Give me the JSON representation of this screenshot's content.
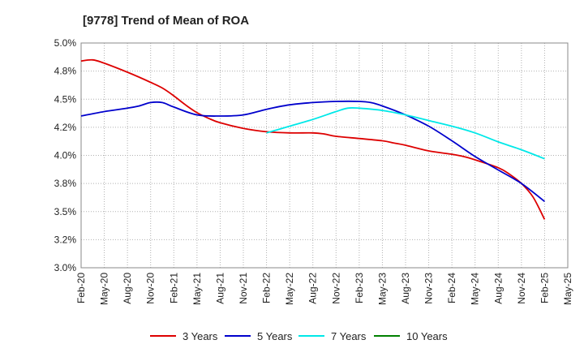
{
  "chart_data": {
    "type": "line",
    "title": "[9778]  Trend of Mean of ROA",
    "xlabel": "",
    "ylabel": "",
    "ylim": [
      3.0,
      5.0
    ],
    "yticks": [
      "3.0%",
      "3.2%",
      "3.5%",
      "3.8%",
      "4.0%",
      "4.2%",
      "4.5%",
      "4.8%",
      "5.0%"
    ],
    "ytick_values": [
      3.0,
      3.25,
      3.5,
      3.75,
      4.0,
      4.25,
      4.5,
      4.75,
      5.0
    ],
    "xticks": [
      "Feb-20",
      "May-20",
      "Aug-20",
      "Nov-20",
      "Feb-21",
      "May-21",
      "Aug-21",
      "Nov-21",
      "Feb-22",
      "May-22",
      "Aug-22",
      "Nov-22",
      "Feb-23",
      "May-23",
      "Aug-23",
      "Nov-23",
      "Feb-24",
      "May-24",
      "Aug-24",
      "Nov-24",
      "Feb-25",
      "May-25"
    ],
    "grid": true,
    "legend_position": "bottom",
    "series": [
      {
        "name": "3 Years",
        "color": "#dd0000",
        "points": [
          [
            0,
            4.84
          ],
          [
            0.5,
            4.85
          ],
          [
            1,
            4.82
          ],
          [
            2,
            4.74
          ],
          [
            3,
            4.65
          ],
          [
            3.5,
            4.6
          ],
          [
            4,
            4.53
          ],
          [
            4.5,
            4.45
          ],
          [
            5,
            4.38
          ],
          [
            5.5,
            4.33
          ],
          [
            6,
            4.29
          ],
          [
            7,
            4.24
          ],
          [
            8,
            4.21
          ],
          [
            9,
            4.2
          ],
          [
            10,
            4.2
          ],
          [
            10.5,
            4.19
          ],
          [
            11,
            4.17
          ],
          [
            12,
            4.15
          ],
          [
            13,
            4.13
          ],
          [
            13.5,
            4.11
          ],
          [
            14,
            4.09
          ],
          [
            15,
            4.04
          ],
          [
            16,
            4.01
          ],
          [
            16.5,
            3.99
          ],
          [
            17,
            3.96
          ],
          [
            18,
            3.89
          ],
          [
            18.5,
            3.83
          ],
          [
            19,
            3.75
          ],
          [
            19.5,
            3.63
          ],
          [
            20,
            3.43
          ]
        ]
      },
      {
        "name": "5 Years",
        "color": "#0000cc",
        "points": [
          [
            0,
            4.35
          ],
          [
            1,
            4.39
          ],
          [
            2,
            4.42
          ],
          [
            2.5,
            4.44
          ],
          [
            3,
            4.47
          ],
          [
            3.5,
            4.47
          ],
          [
            4,
            4.43
          ],
          [
            5,
            4.36
          ],
          [
            6,
            4.35
          ],
          [
            7,
            4.36
          ],
          [
            8,
            4.41
          ],
          [
            9,
            4.45
          ],
          [
            10,
            4.47
          ],
          [
            11,
            4.48
          ],
          [
            12,
            4.48
          ],
          [
            12.5,
            4.47
          ],
          [
            13,
            4.44
          ],
          [
            14,
            4.36
          ],
          [
            15,
            4.26
          ],
          [
            16,
            4.13
          ],
          [
            17,
            3.99
          ],
          [
            18,
            3.87
          ],
          [
            19,
            3.75
          ],
          [
            20,
            3.59
          ]
        ]
      },
      {
        "name": "7 Years",
        "color": "#00e8e8",
        "points": [
          [
            8,
            4.2
          ],
          [
            9,
            4.26
          ],
          [
            10,
            4.32
          ],
          [
            11,
            4.39
          ],
          [
            11.5,
            4.42
          ],
          [
            12,
            4.42
          ],
          [
            13,
            4.4
          ],
          [
            14,
            4.36
          ],
          [
            15,
            4.31
          ],
          [
            16,
            4.26
          ],
          [
            17,
            4.2
          ],
          [
            18,
            4.12
          ],
          [
            19,
            4.05
          ],
          [
            20,
            3.97
          ]
        ]
      },
      {
        "name": "10 Years",
        "color": "#008000",
        "points": []
      }
    ]
  }
}
